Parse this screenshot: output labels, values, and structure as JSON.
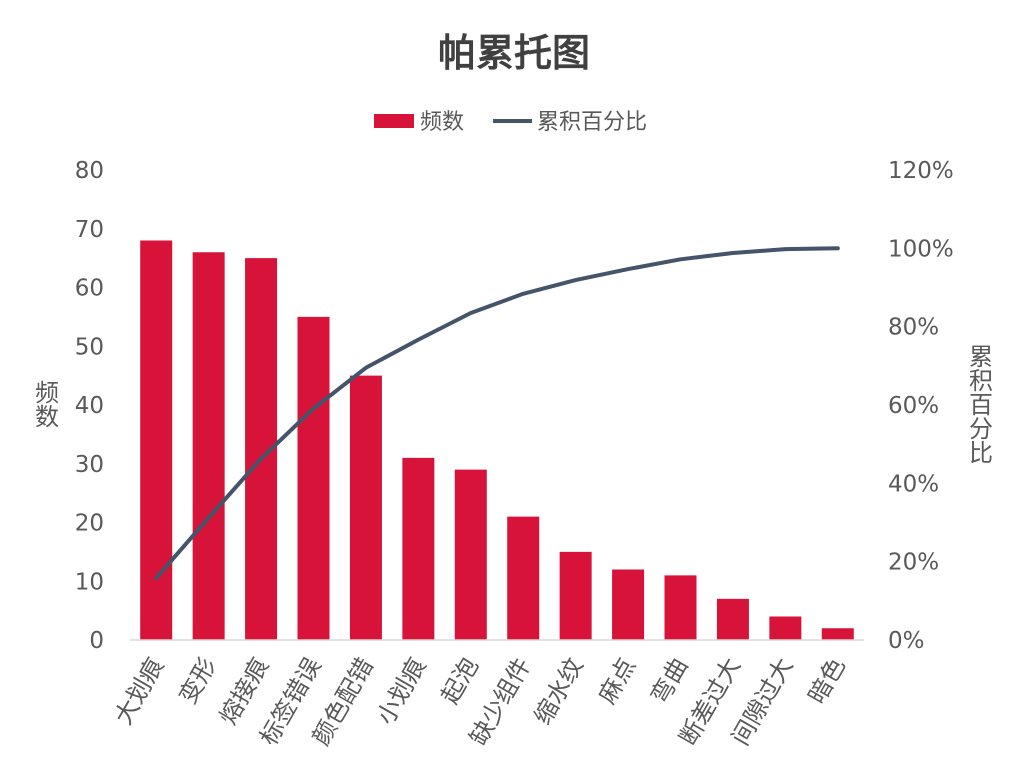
{
  "colors": {
    "bar": "#D7133A",
    "line": "#44546A",
    "text": "#595959",
    "title": "#404040",
    "axis": "#D9D9D9"
  },
  "chart_data": {
    "type": "bar",
    "title": "帕累托图",
    "ylabel": "频数",
    "y2label": "累积百分比",
    "legend_position": "top-center",
    "grid": false,
    "categories": [
      "大划痕",
      "变形",
      "熔接痕",
      "标签错误",
      "颜色配错",
      "小划痕",
      "起泡",
      "缺少组件",
      "缩水纹",
      "麻点",
      "弯曲",
      "断差过大",
      "间隙过大",
      "暗色"
    ],
    "series": [
      {
        "name": "频数",
        "type": "bar",
        "axis": "left",
        "values": [
          68,
          66,
          65,
          55,
          45,
          31,
          29,
          21,
          15,
          12,
          11,
          7,
          4,
          2
        ]
      },
      {
        "name": "累积百分比",
        "type": "line",
        "axis": "right",
        "values": [
          0.158,
          0.312,
          0.463,
          0.591,
          0.695,
          0.767,
          0.835,
          0.884,
          0.919,
          0.947,
          0.972,
          0.988,
          0.998,
          1.0
        ]
      }
    ],
    "ylim": [
      0,
      80
    ],
    "y_ticks": [
      "0",
      "10",
      "20",
      "30",
      "40",
      "50",
      "60",
      "70",
      "80"
    ],
    "y2lim": [
      0,
      1.2
    ],
    "y2_ticks": [
      "0%",
      "20%",
      "40%",
      "60%",
      "80%",
      "100%",
      "120%"
    ]
  }
}
